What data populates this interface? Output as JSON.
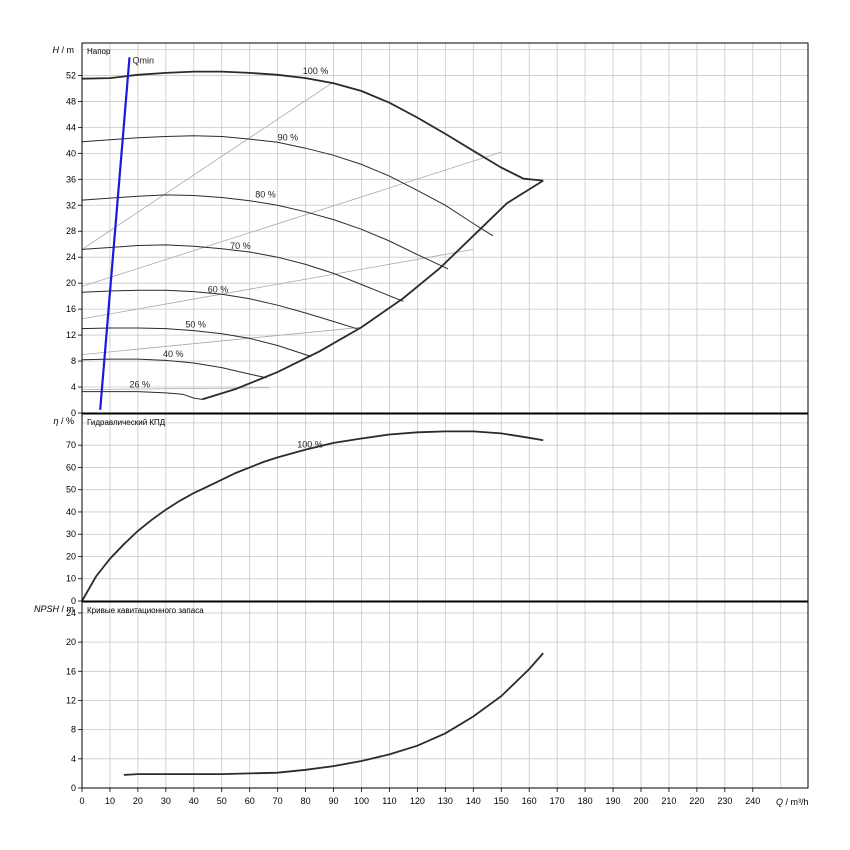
{
  "chart_data": [
    {
      "type": "line",
      "title": "Напор",
      "ylabel_symbol": "H",
      "ylabel_unit": "m",
      "xlim": [
        0,
        260
      ],
      "ylim": [
        0,
        57
      ],
      "yticks": [
        0,
        4,
        8,
        12,
        16,
        20,
        24,
        28,
        32,
        36,
        40,
        44,
        48,
        52
      ],
      "speed_curves": [
        {
          "label": "100 %",
          "label_x": 79,
          "label_y": 52.2,
          "points": [
            [
              0,
              51.5
            ],
            [
              10,
              51.6
            ],
            [
              20,
              52.1
            ],
            [
              30,
              52.4
            ],
            [
              40,
              52.6
            ],
            [
              50,
              52.6
            ],
            [
              60,
              52.4
            ],
            [
              70,
              52.1
            ],
            [
              80,
              51.6
            ],
            [
              90,
              50.8
            ],
            [
              100,
              49.6
            ],
            [
              110,
              47.8
            ],
            [
              120,
              45.5
            ],
            [
              130,
              43
            ],
            [
              140,
              40.4
            ],
            [
              150,
              37.8
            ],
            [
              158,
              36.1
            ],
            [
              165,
              35.8
            ]
          ]
        },
        {
          "label": "90 %",
          "label_x": 70,
          "label_y": 42,
          "points": [
            [
              0,
              41.8
            ],
            [
              10,
              42.1
            ],
            [
              20,
              42.4
            ],
            [
              30,
              42.6
            ],
            [
              40,
              42.7
            ],
            [
              50,
              42.6
            ],
            [
              60,
              42.2
            ],
            [
              70,
              41.7
            ],
            [
              80,
              40.8
            ],
            [
              90,
              39.7
            ],
            [
              100,
              38.3
            ],
            [
              110,
              36.5
            ],
            [
              120,
              34.3
            ],
            [
              130,
              32
            ],
            [
              140,
              29.2
            ],
            [
              147,
              27.3
            ]
          ]
        },
        {
          "label": "80 %",
          "label_x": 62,
          "label_y": 33.2,
          "points": [
            [
              0,
              32.8
            ],
            [
              10,
              33.1
            ],
            [
              20,
              33.4
            ],
            [
              30,
              33.6
            ],
            [
              40,
              33.5
            ],
            [
              50,
              33.2
            ],
            [
              60,
              32.7
            ],
            [
              70,
              32
            ],
            [
              80,
              31
            ],
            [
              90,
              29.8
            ],
            [
              100,
              28.3
            ],
            [
              110,
              26.5
            ],
            [
              120,
              24.4
            ],
            [
              131,
              22.2
            ]
          ]
        },
        {
          "label": "70 %",
          "label_x": 53,
          "label_y": 25.3,
          "points": [
            [
              0,
              25.2
            ],
            [
              10,
              25.5
            ],
            [
              20,
              25.8
            ],
            [
              30,
              25.9
            ],
            [
              40,
              25.7
            ],
            [
              50,
              25.3
            ],
            [
              60,
              24.8
            ],
            [
              70,
              24
            ],
            [
              80,
              22.9
            ],
            [
              90,
              21.5
            ],
            [
              100,
              19.8
            ],
            [
              115,
              17.2
            ]
          ]
        },
        {
          "label": "60 %",
          "label_x": 45,
          "label_y": 18.6,
          "points": [
            [
              0,
              18.6
            ],
            [
              10,
              18.8
            ],
            [
              20,
              18.9
            ],
            [
              30,
              18.9
            ],
            [
              40,
              18.7
            ],
            [
              50,
              18.3
            ],
            [
              60,
              17.6
            ],
            [
              70,
              16.6
            ],
            [
              80,
              15.4
            ],
            [
              90,
              14.1
            ],
            [
              99,
              12.9
            ]
          ]
        },
        {
          "label": "50 %",
          "label_x": 37,
          "label_y": 13.2,
          "points": [
            [
              0,
              13
            ],
            [
              10,
              13.1
            ],
            [
              20,
              13.1
            ],
            [
              30,
              13
            ],
            [
              40,
              12.7
            ],
            [
              50,
              12.2
            ],
            [
              60,
              11.5
            ],
            [
              70,
              10.4
            ],
            [
              82,
              8.7
            ]
          ]
        },
        {
          "label": "40 %",
          "label_x": 29,
          "label_y": 8.6,
          "points": [
            [
              0,
              8.2
            ],
            [
              10,
              8.3
            ],
            [
              20,
              8.3
            ],
            [
              30,
              8.1
            ],
            [
              40,
              7.7
            ],
            [
              50,
              7
            ],
            [
              60,
              6
            ],
            [
              66,
              5.4
            ]
          ]
        },
        {
          "label": "26 %",
          "label_x": 17,
          "label_y": 3.9,
          "points": [
            [
              0,
              3.3
            ],
            [
              10,
              3.3
            ],
            [
              20,
              3.3
            ],
            [
              30,
              3.1
            ],
            [
              36,
              2.9
            ],
            [
              40,
              2.3
            ],
            [
              43,
              2.1
            ]
          ]
        }
      ],
      "envelope": {
        "points": [
          [
            43,
            2.1
          ],
          [
            55,
            3.7
          ],
          [
            70,
            6.3
          ],
          [
            85,
            9.5
          ],
          [
            100,
            13.2
          ],
          [
            115,
            17.7
          ],
          [
            128,
            22.3
          ],
          [
            140,
            27.3
          ],
          [
            152,
            32.3
          ],
          [
            165,
            35.8
          ]
        ]
      },
      "efficiency_lines": [
        {
          "points": [
            [
              0,
              25.2
            ],
            [
              90,
              51
            ]
          ]
        },
        {
          "points": [
            [
              0,
              19.5
            ],
            [
              150,
              40.2
            ]
          ]
        },
        {
          "points": [
            [
              0,
              14.5
            ],
            [
              140,
              25.2
            ]
          ]
        },
        {
          "points": [
            [
              0,
              9
            ],
            [
              100,
              13.2
            ]
          ]
        },
        {
          "points": [
            [
              0,
              3.6
            ],
            [
              67,
              3.9
            ]
          ]
        }
      ],
      "qmin": {
        "label": "Qmin",
        "points": [
          [
            17,
            54.8
          ],
          [
            6.5,
            0.5
          ]
        ]
      }
    },
    {
      "type": "line",
      "title": "Гидравлический КПД",
      "ylabel_symbol": "η",
      "ylabel_unit": "%",
      "xlim": [
        0,
        260
      ],
      "ylim": [
        0,
        84
      ],
      "yticks": [
        0,
        10,
        20,
        30,
        40,
        50,
        60,
        70
      ],
      "series": [
        {
          "label": "100 %",
          "label_x": 77,
          "label_y": 69,
          "points": [
            [
              0,
              0
            ],
            [
              5,
              11
            ],
            [
              10,
              19
            ],
            [
              15,
              25.5
            ],
            [
              20,
              31.5
            ],
            [
              25,
              36.5
            ],
            [
              30,
              41
            ],
            [
              35,
              45
            ],
            [
              40,
              48.5
            ],
            [
              45,
              51.5
            ],
            [
              50,
              54.5
            ],
            [
              55,
              57.5
            ],
            [
              60,
              60
            ],
            [
              65,
              62.5
            ],
            [
              70,
              64.5
            ],
            [
              80,
              68
            ],
            [
              90,
              71
            ],
            [
              100,
              73
            ],
            [
              110,
              74.8
            ],
            [
              120,
              75.8
            ],
            [
              130,
              76.2
            ],
            [
              140,
              76.2
            ],
            [
              150,
              75.3
            ],
            [
              160,
              73.3
            ],
            [
              165,
              72.2
            ]
          ]
        }
      ]
    },
    {
      "type": "line",
      "title": "Кривые кавитационного запаса",
      "ylabel_symbol": "NPSH",
      "ylabel_unit": "m",
      "xlabel_symbol": "Q",
      "xlabel_unit": "m³/h",
      "xlim": [
        0,
        260
      ],
      "ylim": [
        0,
        25.5
      ],
      "yticks": [
        0,
        4,
        8,
        12,
        16,
        20,
        24
      ],
      "xticks": [
        0,
        10,
        20,
        30,
        40,
        50,
        60,
        70,
        80,
        90,
        100,
        110,
        120,
        130,
        140,
        150,
        160,
        170,
        180,
        190,
        200,
        210,
        220,
        230,
        240
      ],
      "series": [
        {
          "points": [
            [
              15,
              1.8
            ],
            [
              20,
              1.9
            ],
            [
              30,
              1.9
            ],
            [
              40,
              1.9
            ],
            [
              50,
              1.9
            ],
            [
              60,
              2
            ],
            [
              70,
              2.1
            ],
            [
              80,
              2.5
            ],
            [
              90,
              3
            ],
            [
              100,
              3.7
            ],
            [
              110,
              4.6
            ],
            [
              120,
              5.8
            ],
            [
              130,
              7.5
            ],
            [
              140,
              9.8
            ],
            [
              150,
              12.6
            ],
            [
              160,
              16.3
            ],
            [
              165,
              18.5
            ]
          ]
        }
      ]
    }
  ]
}
